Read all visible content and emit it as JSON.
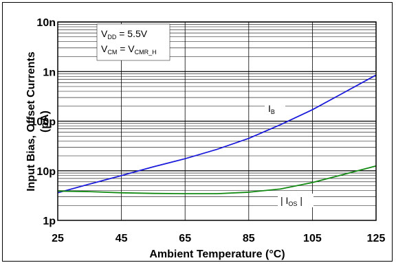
{
  "chart_data": {
    "type": "line",
    "xlabel": "Ambient Temperature (°C)",
    "ylabel_line1": "Input Bias, Offset Currents",
    "ylabel_line2": "(pA)",
    "x_ticks": [
      "25",
      "45",
      "65",
      "85",
      "105",
      "125"
    ],
    "y_ticks": [
      "1p",
      "10p",
      "100p",
      "1n",
      "10n"
    ],
    "xlim": [
      25,
      125
    ],
    "ylim_pA": [
      1,
      10000
    ],
    "yscale": "log",
    "grid": true,
    "conditions": {
      "vdd_main": "V",
      "vdd_sub": "DD",
      "vdd_rest": " = 5.5V",
      "vcm_main": "V",
      "vcm_sub": "CM",
      "vcm_eq": " = V",
      "vcm_sub2": "CMR_H"
    },
    "series": [
      {
        "label_main": "I",
        "label_sub": "B",
        "color": "#1a1adb",
        "x": [
          25,
          35,
          45,
          55,
          65,
          75,
          85,
          95,
          105,
          115,
          125
        ],
        "y": [
          3.6,
          5.4,
          8.0,
          12.0,
          17.5,
          27,
          45,
          85,
          170,
          380,
          850
        ]
      },
      {
        "label_main": "| I",
        "label_sub": "OS",
        "label_end": " |",
        "color": "#138a13",
        "x": [
          25,
          35,
          45,
          55,
          65,
          75,
          85,
          95,
          105,
          115,
          125
        ],
        "y": [
          3.9,
          3.8,
          3.6,
          3.5,
          3.45,
          3.45,
          3.7,
          4.3,
          5.8,
          8.5,
          12.5
        ]
      }
    ]
  }
}
